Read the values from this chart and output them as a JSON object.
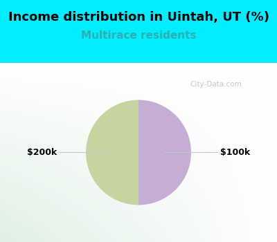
{
  "title": "Income distribution in Uintah, UT (%)",
  "subtitle": "Multirace residents",
  "slices": [
    50,
    50
  ],
  "labels": [
    "$200k",
    "$100k"
  ],
  "colors": [
    "#c8d4a0",
    "#c5aed4"
  ],
  "bg_color": "#00eeff",
  "panel_color": "#e8f5ee",
  "title_fontsize": 13,
  "subtitle_fontsize": 11,
  "subtitle_color": "#2ab0b0",
  "label_fontsize": 9,
  "watermark": "City-Data.com",
  "startangle": 90
}
